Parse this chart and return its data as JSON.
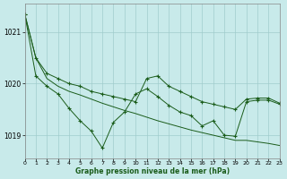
{
  "bg_color": "#c8eaea",
  "grid_color": "#a0cccc",
  "line_color": "#1a5c1a",
  "ylim": [
    1018.55,
    1021.55
  ],
  "xlim": [
    0,
    23
  ],
  "yticks": [
    1019,
    1020,
    1021
  ],
  "xticks": [
    0,
    1,
    2,
    3,
    4,
    5,
    6,
    7,
    8,
    9,
    10,
    11,
    12,
    13,
    14,
    15,
    16,
    17,
    18,
    19,
    20,
    21,
    22,
    23
  ],
  "xlabel": "Graphe pression niveau de la mer (hPa)",
  "s1": [
    1021.35,
    1020.5,
    1020.2,
    1020.1,
    1020.0,
    1019.95,
    1019.85,
    1019.8,
    1019.75,
    1019.7,
    1019.65,
    1020.1,
    1020.15,
    1019.95,
    1019.85,
    1019.75,
    1019.65,
    1019.6,
    1019.55,
    1019.5,
    1019.7,
    1019.72,
    1019.72,
    1019.62
  ],
  "s2": [
    1021.35,
    1020.5,
    1020.1,
    1019.95,
    1019.85,
    1019.78,
    1019.7,
    1019.62,
    1019.55,
    1019.48,
    1019.42,
    1019.35,
    1019.28,
    1019.22,
    1019.16,
    1019.1,
    1019.05,
    1019.0,
    1018.95,
    1018.9,
    1018.9,
    1018.87,
    1018.84,
    1018.8
  ],
  "s3": [
    1021.35,
    1020.15,
    1019.95,
    1019.8,
    1019.52,
    1019.28,
    1019.08,
    1018.75,
    1019.25,
    1019.45,
    1019.8,
    1019.9,
    1019.75,
    1019.58,
    1019.45,
    1019.38,
    1019.18,
    1019.28,
    1019.0,
    1018.98,
    1019.65,
    1019.68,
    1019.68,
    1019.6
  ],
  "s1_has_markers": true,
  "s2_has_markers": false,
  "s3_has_markers": true
}
